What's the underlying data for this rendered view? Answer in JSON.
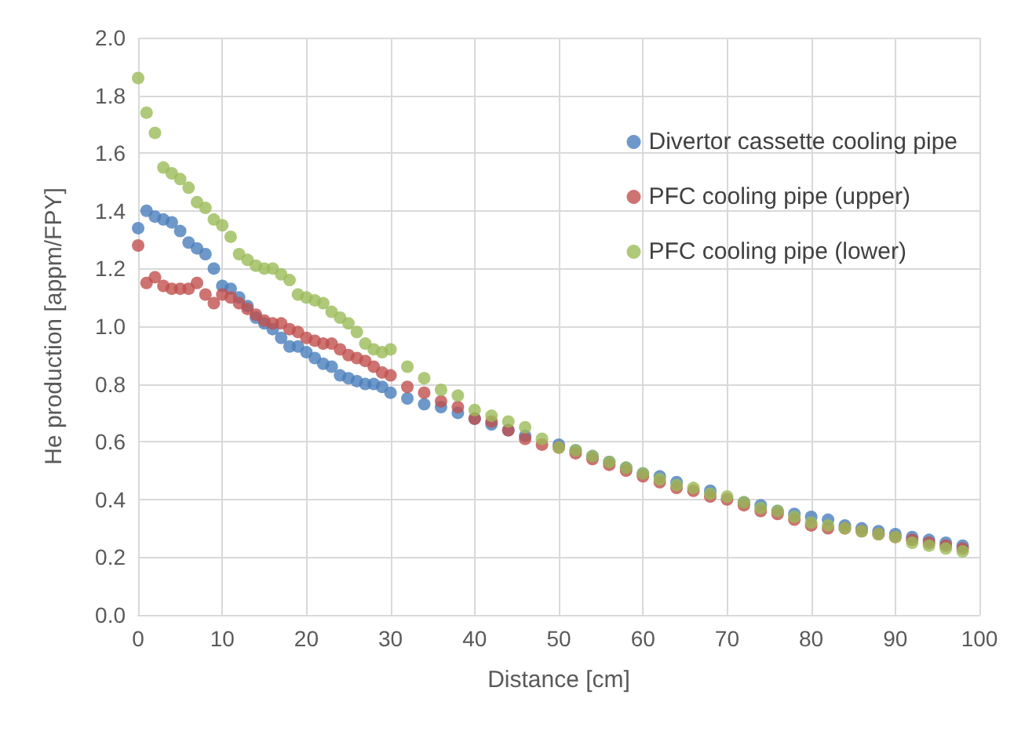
{
  "chart_data": {
    "type": "scatter",
    "xlabel": "Distance [cm]",
    "ylabel": "He production [appm/FPY]",
    "x": [
      0,
      1,
      2,
      3,
      4,
      5,
      6,
      7,
      8,
      9,
      10,
      11,
      12,
      13,
      14,
      15,
      16,
      17,
      18,
      19,
      20,
      21,
      22,
      23,
      24,
      25,
      26,
      27,
      28,
      29,
      30,
      32,
      34,
      36,
      38,
      40,
      42,
      44,
      46,
      48,
      50,
      52,
      54,
      56,
      58,
      60,
      62,
      64,
      66,
      68,
      70,
      72,
      74,
      76,
      78,
      80,
      82,
      84,
      86,
      88,
      90,
      92,
      94,
      96,
      98
    ],
    "series": [
      {
        "name": "Divertor cassette cooling pipe",
        "color": "#4a7ebb",
        "values": [
          1.34,
          1.4,
          1.38,
          1.37,
          1.36,
          1.33,
          1.29,
          1.27,
          1.25,
          1.2,
          1.14,
          1.13,
          1.1,
          1.07,
          1.03,
          1.01,
          0.99,
          0.96,
          0.93,
          0.93,
          0.91,
          0.89,
          0.87,
          0.86,
          0.83,
          0.82,
          0.81,
          0.8,
          0.8,
          0.79,
          0.77,
          0.75,
          0.73,
          0.72,
          0.7,
          0.68,
          0.66,
          0.64,
          0.62,
          null,
          0.59,
          0.57,
          0.55,
          0.53,
          0.51,
          0.49,
          0.48,
          0.46,
          null,
          0.43,
          null,
          0.39,
          0.38,
          0.36,
          0.35,
          0.34,
          0.33,
          0.31,
          0.3,
          0.29,
          0.28,
          0.27,
          0.26,
          0.25,
          0.24
        ]
      },
      {
        "name": "PFC cooling pipe (upper)",
        "color": "#c0504d",
        "values": [
          1.28,
          1.15,
          1.17,
          1.14,
          1.13,
          1.13,
          1.13,
          1.15,
          1.11,
          1.08,
          1.11,
          1.1,
          1.08,
          1.06,
          1.04,
          1.02,
          1.01,
          1.01,
          0.99,
          0.98,
          0.96,
          0.95,
          0.94,
          0.94,
          0.92,
          0.9,
          0.89,
          0.88,
          0.86,
          0.84,
          0.83,
          0.79,
          0.77,
          0.74,
          0.72,
          0.68,
          0.67,
          0.64,
          0.61,
          0.59,
          0.58,
          0.56,
          0.54,
          0.52,
          0.5,
          0.48,
          0.46,
          0.44,
          0.43,
          0.41,
          0.4,
          0.38,
          0.36,
          0.35,
          0.33,
          0.31,
          0.3,
          0.3,
          0.29,
          0.28,
          0.27,
          0.26,
          0.25,
          0.24,
          0.23
        ]
      },
      {
        "name": "PFC cooling pipe (lower)",
        "color": "#9bbb59",
        "values": [
          1.86,
          1.74,
          1.67,
          1.55,
          1.53,
          1.51,
          1.48,
          1.43,
          1.41,
          1.37,
          1.35,
          1.31,
          1.25,
          1.23,
          1.21,
          1.2,
          1.2,
          1.18,
          1.16,
          1.11,
          1.1,
          1.09,
          1.08,
          1.05,
          1.03,
          1.01,
          0.98,
          0.94,
          0.92,
          0.91,
          0.92,
          0.86,
          0.82,
          0.78,
          0.76,
          0.71,
          0.69,
          0.67,
          0.65,
          0.61,
          0.58,
          0.57,
          0.55,
          0.53,
          0.51,
          0.49,
          0.47,
          0.45,
          0.44,
          0.42,
          0.41,
          0.39,
          0.37,
          0.36,
          0.34,
          0.32,
          0.31,
          0.3,
          0.29,
          0.28,
          0.27,
          0.25,
          0.24,
          0.23,
          0.22
        ]
      }
    ],
    "xlim": [
      0,
      100
    ],
    "xticks": [
      0,
      10,
      20,
      30,
      40,
      50,
      60,
      70,
      80,
      90,
      100
    ],
    "ylim": [
      0,
      2
    ],
    "yticks": [
      {
        "value": 0,
        "label": "0.0"
      },
      {
        "value": 0.2,
        "label": "0.2"
      },
      {
        "value": 0.4,
        "label": "0.4"
      },
      {
        "value": 0.6,
        "label": "0.6"
      },
      {
        "value": 0.8,
        "label": "0.8"
      },
      {
        "value": 1,
        "label": "1.0"
      },
      {
        "value": 1.2,
        "label": "1.2"
      },
      {
        "value": 1.4,
        "label": "1.4"
      },
      {
        "value": 1.6,
        "label": "1.6"
      },
      {
        "value": 1.8,
        "label": "1.8"
      },
      {
        "value": 2,
        "label": "2.0"
      }
    ],
    "grid": true,
    "legend": "top right",
    "marker": "circle"
  }
}
